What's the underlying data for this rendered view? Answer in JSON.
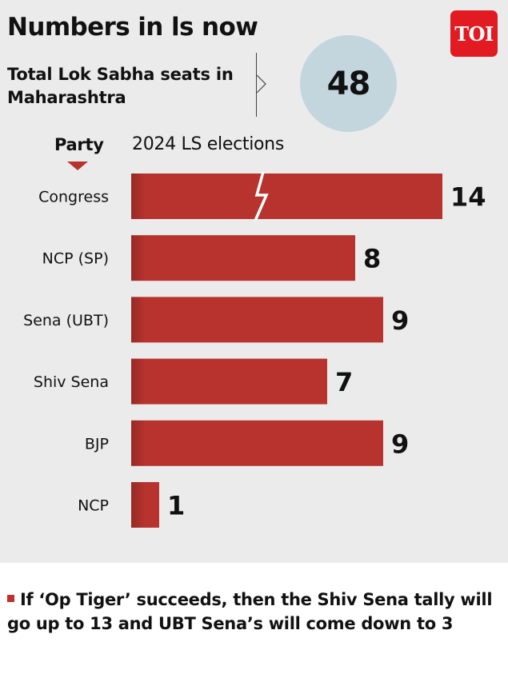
{
  "header": {
    "title": "Numbers in ls now",
    "logo_text": "TOI"
  },
  "summary": {
    "label": "Total Lok Sabha seats in Maharashtra",
    "value": "48"
  },
  "chart_data": {
    "type": "bar",
    "orientation": "horizontal",
    "category_header": "Party",
    "series_header": "2024 LS elections",
    "categories": [
      "Congress",
      "NCP (SP)",
      "Sena (UBT)",
      "Shiv Sena",
      "BJP",
      "NCP"
    ],
    "series": [
      {
        "values": [
          14,
          8,
          9,
          7,
          9,
          1
        ]
      }
    ],
    "axis_break": "Congress bar is truncated with a zig-zag break",
    "grid": false,
    "data_labels": true,
    "colors": {
      "bar": "#b8332d",
      "circle": "#c3d6de",
      "logo": "#e21b22",
      "panel": "#ebebeb"
    }
  },
  "footnote": {
    "text": "If ‘Op Tiger’ succeeds, then the Shiv Sena tally will go up to 13 and UBT Sena’s will come down to 3"
  }
}
